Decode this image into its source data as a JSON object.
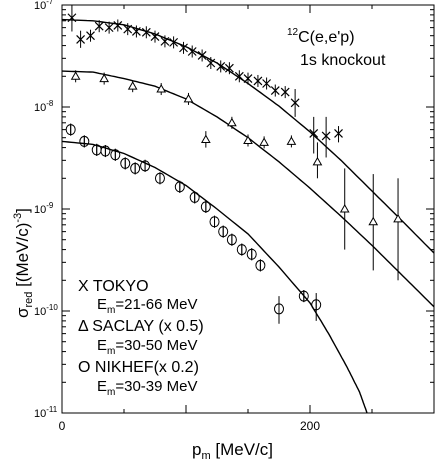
{
  "chart_data": {
    "type": "scatter",
    "title": "",
    "annotation_lines": [
      "12C(e,e'p)",
      "1s knockout"
    ],
    "xlabel": "p_m [MeV/c]",
    "ylabel": "σ_red [(MeV/c)^-3]",
    "x_scale": "linear",
    "y_scale": "log",
    "xlim": [
      0,
      300
    ],
    "ylim": [
      1e-11,
      1e-07
    ],
    "grid": false,
    "x_ticks": [
      {
        "value": 0,
        "label": "0"
      },
      {
        "value": 200,
        "label": "200"
      }
    ],
    "y_ticks": [
      {
        "value": 1e-07,
        "label": "10-7",
        "base": "10",
        "exp": "-7"
      },
      {
        "value": 1e-08,
        "label": "10-8",
        "base": "10",
        "exp": "-8"
      },
      {
        "value": 1e-09,
        "label": "10-9",
        "base": "10",
        "exp": "-9"
      },
      {
        "value": 1e-10,
        "label": "10-10",
        "base": "10",
        "exp": "-10"
      },
      {
        "value": 1e-11,
        "label": "10-11",
        "base": "10",
        "exp": "-11"
      }
    ],
    "legend": {
      "placement": "bottom-left",
      "entries": [
        {
          "symbol": "X",
          "label": "TOKYO",
          "range": "Em=21-66 MeV"
        },
        {
          "symbol": "Δ",
          "label": "SACLAY (x 0.5)",
          "range": "Em=30-50 MeV"
        },
        {
          "symbol": "O",
          "label": "NIKHEF(x 0.2)",
          "range": "Em=30-39 MeV"
        }
      ]
    },
    "series": [
      {
        "marker": "x",
        "points": [
          {
            "x": 8,
            "y": 7.5e-08,
            "err": [
              5.5e-08,
              1e-07
            ]
          },
          {
            "x": 15,
            "y": 4.6e-08,
            "err": [
              3.8e-08,
              5.6e-08
            ]
          },
          {
            "x": 23,
            "y": 5e-08
          },
          {
            "x": 30,
            "y": 6.2e-08
          },
          {
            "x": 38,
            "y": 6e-08
          },
          {
            "x": 45,
            "y": 6.3e-08
          },
          {
            "x": 53,
            "y": 5.8e-08
          },
          {
            "x": 60,
            "y": 5.5e-08
          },
          {
            "x": 68,
            "y": 5.4e-08
          },
          {
            "x": 75,
            "y": 4.9e-08
          },
          {
            "x": 83,
            "y": 4.4e-08
          },
          {
            "x": 90,
            "y": 4.3e-08
          },
          {
            "x": 98,
            "y": 3.8e-08
          },
          {
            "x": 105,
            "y": 3.5e-08
          },
          {
            "x": 113,
            "y": 3.2e-08
          },
          {
            "x": 120,
            "y": 2.7e-08
          },
          {
            "x": 128,
            "y": 2.5e-08
          },
          {
            "x": 135,
            "y": 2.4e-08
          },
          {
            "x": 143,
            "y": 2e-08
          },
          {
            "x": 150,
            "y": 1.9e-08
          },
          {
            "x": 158,
            "y": 1.8e-08
          },
          {
            "x": 165,
            "y": 1.7e-08
          },
          {
            "x": 172,
            "y": 1.45e-08
          },
          {
            "x": 180,
            "y": 1.4e-08
          },
          {
            "x": 188,
            "y": 1.1e-08,
            "err": [
              8e-09,
              1.5e-08
            ]
          },
          {
            "x": 203,
            "y": 5.5e-09,
            "err": [
              3.5e-09,
              8e-09
            ]
          },
          {
            "x": 213,
            "y": 5.2e-09,
            "err": [
              3.2e-09,
              8e-09
            ]
          },
          {
            "x": 223,
            "y": 5.5e-09,
            "err": [
              4.5e-09,
              6.5e-09
            ]
          }
        ]
      },
      {
        "marker": "triangle",
        "points": [
          {
            "x": 11,
            "y": 2e-08
          },
          {
            "x": 34,
            "y": 1.9e-08
          },
          {
            "x": 57,
            "y": 1.6e-08
          },
          {
            "x": 80,
            "y": 1.5e-08
          },
          {
            "x": 102,
            "y": 1.2e-08
          },
          {
            "x": 116,
            "y": 4.8e-09,
            "err": [
              4e-09,
              5.8e-09
            ]
          },
          {
            "x": 137,
            "y": 7e-09
          },
          {
            "x": 150,
            "y": 4.7e-09
          },
          {
            "x": 163,
            "y": 4.5e-09
          },
          {
            "x": 185,
            "y": 4.6e-09
          },
          {
            "x": 206,
            "y": 2.9e-09,
            "err": [
              2e-09,
              4.5e-09
            ]
          },
          {
            "x": 228,
            "y": 1e-09,
            "err": [
              4e-10,
              2.5e-09
            ]
          },
          {
            "x": 251,
            "y": 7.5e-10,
            "err": [
              2.5e-10,
              2.2e-09
            ]
          },
          {
            "x": 271,
            "y": 8e-10,
            "err": [
              2e-10,
              2e-09
            ]
          }
        ]
      },
      {
        "marker": "circle",
        "points": [
          {
            "x": 7,
            "y": 6e-09
          },
          {
            "x": 18,
            "y": 4.6e-09
          },
          {
            "x": 28,
            "y": 3.8e-09
          },
          {
            "x": 35,
            "y": 3.7e-09
          },
          {
            "x": 43,
            "y": 3.4e-09
          },
          {
            "x": 51,
            "y": 2.8e-09
          },
          {
            "x": 59,
            "y": 2.5e-09
          },
          {
            "x": 67,
            "y": 2.65e-09
          },
          {
            "x": 79,
            "y": 2e-09
          },
          {
            "x": 95,
            "y": 1.65e-09
          },
          {
            "x": 107,
            "y": 1.3e-09
          },
          {
            "x": 116,
            "y": 1.05e-09
          },
          {
            "x": 123,
            "y": 7.5e-10
          },
          {
            "x": 130,
            "y": 6e-10
          },
          {
            "x": 137,
            "y": 5e-10
          },
          {
            "x": 145,
            "y": 4e-10
          },
          {
            "x": 153,
            "y": 3.6e-10
          },
          {
            "x": 160,
            "y": 2.8e-10
          },
          {
            "x": 175,
            "y": 1.05e-10,
            "err": [
              7.5e-11,
              1.4e-10
            ]
          },
          {
            "x": 195,
            "y": 1.4e-10
          },
          {
            "x": 205,
            "y": 1.15e-10,
            "err": [
              8e-11,
              1.5e-10
            ]
          }
        ]
      }
    ],
    "curves": [
      {
        "points": [
          [
            0,
            7.2e-08
          ],
          [
            25,
            7e-08
          ],
          [
            50,
            6.4e-08
          ],
          [
            75,
            5.2e-08
          ],
          [
            100,
            3.9e-08
          ],
          [
            125,
            2.7e-08
          ],
          [
            150,
            1.7e-08
          ],
          [
            175,
            1.02e-08
          ],
          [
            200,
            5.7e-09
          ],
          [
            225,
            3e-09
          ],
          [
            250,
            1.5e-09
          ],
          [
            275,
            7.5e-10
          ],
          [
            300,
            3.7e-10
          ]
        ]
      },
      {
        "points": [
          [
            0,
            2.25e-08
          ],
          [
            25,
            2.2e-08
          ],
          [
            50,
            1.9e-08
          ],
          [
            75,
            1.6e-08
          ],
          [
            100,
            1.2e-08
          ],
          [
            125,
            8e-09
          ],
          [
            150,
            5e-09
          ],
          [
            175,
            2.9e-09
          ],
          [
            200,
            1.6e-09
          ],
          [
            225,
            8.5e-10
          ],
          [
            250,
            4.4e-10
          ],
          [
            275,
            2.2e-10
          ],
          [
            300,
            1.1e-10
          ]
        ]
      },
      {
        "points": [
          [
            0,
            4.6e-09
          ],
          [
            25,
            4.3e-09
          ],
          [
            50,
            3.5e-09
          ],
          [
            75,
            2.55e-09
          ],
          [
            100,
            1.7e-09
          ],
          [
            125,
            1e-09
          ],
          [
            150,
            5.7e-10
          ],
          [
            175,
            2.7e-10
          ],
          [
            200,
            1.2e-10
          ],
          [
            215,
            6e-11
          ],
          [
            230,
            2.8e-11
          ],
          [
            240,
            1.6e-11
          ],
          [
            246,
            1e-11
          ]
        ]
      }
    ]
  }
}
